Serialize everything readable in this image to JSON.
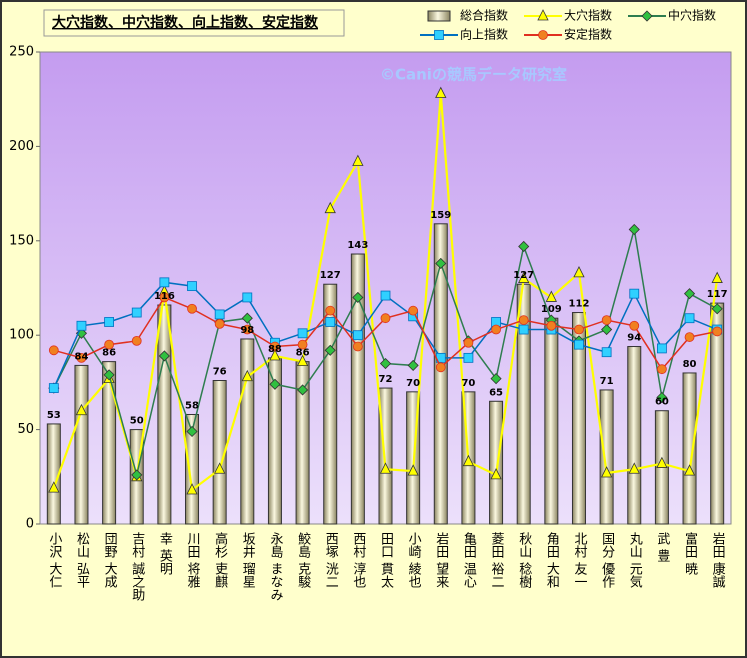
{
  "chart_data": {
    "type": "combo",
    "title": "大穴指数、中穴指数、向上指数、安定指数",
    "annotation": "©Caniの競馬データ研究室",
    "categories": [
      "小沢 大仁",
      "松山 弘平",
      "団野 大成",
      "吉村 誠之助",
      "幸 英明",
      "川田 将雅",
      "高杉 吏麒",
      "坂井 瑠星",
      "永島 まなみ",
      "鮫島 克駿",
      "西塚 洸二",
      "西村 淳也",
      "田口 貫太",
      "小崎 綾也",
      "岩田 望来",
      "亀田 温心",
      "菱田 裕二",
      "秋山 稔樹",
      "角田 大和",
      "北村 友一",
      "国分 優作",
      "丸山 元気",
      "武 豊",
      "富田 暁",
      "岩田 康誠"
    ],
    "series": [
      {
        "name": "総合指数",
        "type": "bar",
        "color": "#d8d0a0",
        "values": [
          53,
          84,
          86,
          50,
          116,
          58,
          76,
          98,
          88,
          86,
          127,
          143,
          72,
          70,
          159,
          70,
          65,
          127,
          109,
          112,
          71,
          94,
          60,
          80,
          117
        ]
      },
      {
        "name": "大穴指数",
        "type": "line",
        "marker": "triangle",
        "color": "#ffff00",
        "values": [
          19,
          60,
          77,
          25,
          123,
          18,
          29,
          78,
          89,
          86,
          167,
          192,
          29,
          28,
          228,
          33,
          26,
          130,
          120,
          133,
          27,
          29,
          32,
          28,
          130
        ]
      },
      {
        "name": "中穴指数",
        "type": "line",
        "marker": "diamond",
        "color": "#2e7d4f",
        "values": [
          72,
          101,
          79,
          26,
          89,
          49,
          107,
          109,
          74,
          71,
          92,
          120,
          85,
          84,
          138,
          97,
          77,
          147,
          108,
          97,
          103,
          156,
          67,
          122,
          114
        ]
      },
      {
        "name": "向上指数",
        "type": "line",
        "marker": "square",
        "color": "#0070c0",
        "values": [
          72,
          105,
          107,
          112,
          128,
          126,
          111,
          120,
          96,
          101,
          107,
          100,
          121,
          110,
          88,
          88,
          107,
          103,
          103,
          95,
          91,
          122,
          93,
          109,
          103
        ]
      },
      {
        "name": "安定指数",
        "type": "line",
        "marker": "circle",
        "color": "#e03020",
        "values": [
          92,
          88,
          95,
          97,
          120,
          114,
          106,
          103,
          94,
          95,
          113,
          94,
          109,
          113,
          83,
          96,
          103,
          108,
          105,
          103,
          108,
          105,
          82,
          99,
          102
        ]
      }
    ],
    "ylim": [
      0,
      250
    ],
    "yticks": [
      0,
      50,
      100,
      150,
      200,
      250
    ],
    "grid": false,
    "legend": "top-right"
  }
}
